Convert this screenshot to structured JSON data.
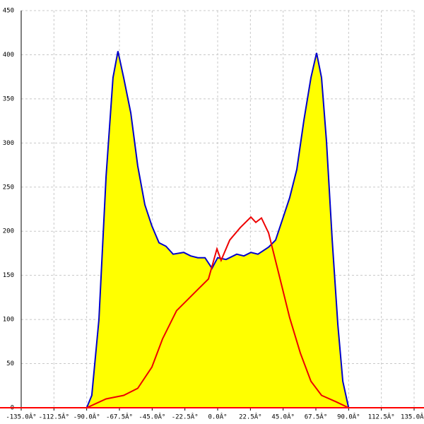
{
  "chart_data": {
    "type": "line",
    "xlim": [
      -135,
      135
    ],
    "ylim": [
      0,
      450
    ],
    "xticks": [
      {
        "value": -135,
        "label": "-135.0Â°"
      },
      {
        "value": -112.5,
        "label": "-112.5Â°"
      },
      {
        "value": -90,
        "label": "-90.0Â°"
      },
      {
        "value": -67.5,
        "label": "-67.5Â°"
      },
      {
        "value": -45,
        "label": "-45.0Â°"
      },
      {
        "value": -22.5,
        "label": "-22.5Â°"
      },
      {
        "value": 0,
        "label": "0.0Â°"
      },
      {
        "value": 22.5,
        "label": "22.5Â°"
      },
      {
        "value": 45,
        "label": "45.0Â°"
      },
      {
        "value": 67.5,
        "label": "67.5Â°"
      },
      {
        "value": 90,
        "label": "90.0Â°"
      },
      {
        "value": 112.5,
        "label": "112.5Â°"
      },
      {
        "value": 135,
        "label": "135.0Â°"
      }
    ],
    "yticks": [
      0,
      50,
      100,
      150,
      200,
      250,
      300,
      350,
      400,
      450
    ],
    "grid": true,
    "baseline_color": "#ff0000",
    "series": [
      {
        "color": "#0000cc",
        "fill": "#ffff00",
        "x": [
          -90,
          -86.5,
          -81.6,
          -76.7,
          -71.9,
          -68.5,
          -64.6,
          -59.7,
          -54.9,
          -50,
          -45.2,
          -40.3,
          -35.5,
          -30.6,
          -23.3,
          -18.5,
          -13.6,
          -8.7,
          -3.9,
          0,
          5.8,
          13.1,
          18,
          22.8,
          27.7,
          35,
          39.8,
          44.7,
          49.5,
          54.4,
          59.3,
          64.1,
          68,
          71.4,
          74.8,
          78.7,
          82.6,
          86,
          90
        ],
        "values": [
          0,
          14,
          100,
          262,
          374,
          404,
          374,
          334,
          274,
          230,
          206,
          187,
          183,
          174,
          176,
          172,
          170,
          170,
          158,
          170,
          168,
          174,
          172,
          176,
          174,
          182,
          190,
          214,
          238,
          270,
          326,
          374,
          402,
          374,
          302,
          190,
          94,
          30,
          0
        ]
      },
      {
        "color": "#ee0000",
        "x": [
          -90,
          -76.7,
          -64.6,
          -54.9,
          -45.2,
          -37.9,
          -28.2,
          -20.9,
          -13.6,
          -6.3,
          -0.5,
          2.4,
          8.3,
          15.5,
          22.8,
          26.2,
          30.1,
          35,
          42.3,
          49.5,
          56.8,
          64.1,
          71.4,
          81.1,
          90
        ],
        "values": [
          0,
          10,
          14,
          22,
          46,
          78,
          110,
          122,
          134,
          146,
          180,
          167,
          190,
          204,
          216,
          210,
          215,
          198,
          150,
          102,
          62,
          30,
          14,
          7,
          0
        ]
      }
    ]
  }
}
